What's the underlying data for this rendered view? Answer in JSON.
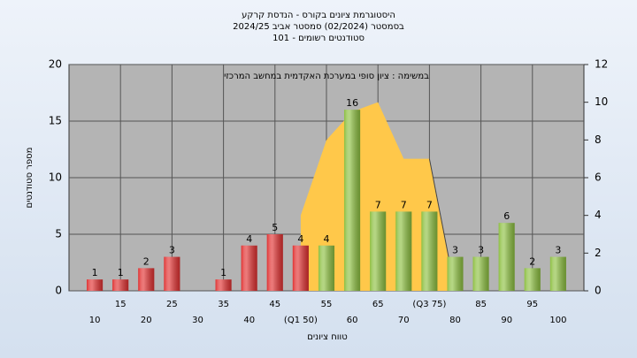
{
  "chart_data": {
    "type": "bar",
    "title": [
      "היסטוגרמת ציונים בקורס - הנדסת קרקע",
      "בסמסטר  (02/2024)  סמסטר אביב 2024/25",
      "סטודנטים רשומים - 101"
    ],
    "annotation": "במשימה : ציון סופי במערכת האקדמית במחשב המרכזי",
    "x_label": "טווח ציונים",
    "y_label": "מספר סטודנטים",
    "categories": [
      "10",
      "15",
      "20",
      "25",
      "30",
      "35",
      "40",
      "45",
      "(Q1 50)",
      "55",
      "60",
      "65",
      "70",
      "(Q3 75)",
      "80",
      "85",
      "90",
      "95",
      "100"
    ],
    "values": [
      1,
      1,
      2,
      3,
      null,
      1,
      4,
      5,
      4,
      4,
      16,
      7,
      7,
      7,
      3,
      3,
      6,
      2,
      3
    ],
    "colors": [
      "#e03030",
      "#e03030",
      "#e03030",
      "#e03030",
      "#e03030",
      "#e03030",
      "#e03030",
      "#e03030",
      "#e03030",
      "#8cbf40",
      "#8cbf40",
      "#8cbf40",
      "#8cbf40",
      "#8cbf40",
      "#8cbf40",
      "#8cbf40",
      "#8cbf40",
      "#8cbf40",
      "#8cbf40"
    ],
    "area": {
      "color": "#ffc84a",
      "axis": "y2",
      "values": [
        null,
        null,
        null,
        null,
        null,
        null,
        null,
        null,
        4,
        8,
        9.5,
        10,
        7,
        7,
        0,
        null,
        null,
        null,
        null
      ]
    },
    "ylim": [
      0,
      20
    ],
    "yticks": [
      0,
      5,
      10,
      15,
      20
    ],
    "y2lim": [
      0,
      12
    ],
    "y2ticks": [
      0,
      2,
      4,
      6,
      8,
      10,
      12
    ],
    "grid": true
  }
}
